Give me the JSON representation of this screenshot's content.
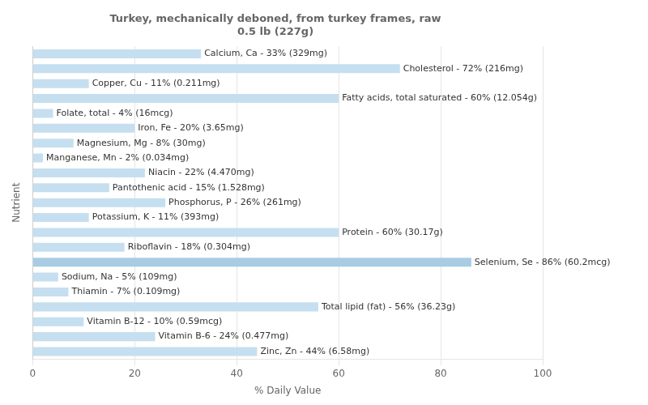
{
  "chart_data": {
    "type": "bar",
    "orientation": "horizontal",
    "title": "Turkey, mechanically deboned, from turkey frames, raw\n0.5 lb (227g)",
    "x_label": "% Daily Value",
    "y_label": "Nutrient",
    "categories": [
      "Calcium, Ca - 33% (329mg)",
      "Cholesterol - 72% (216mg)",
      "Copper, Cu - 11% (0.211mg)",
      "Fatty acids, total saturated - 60% (12.054g)",
      "Folate, total - 4% (16mcg)",
      "Iron, Fe - 20% (3.65mg)",
      "Magnesium, Mg - 8% (30mg)",
      "Manganese, Mn - 2% (0.034mg)",
      "Niacin - 22% (4.470mg)",
      "Pantothenic acid - 15% (1.528mg)",
      "Phosphorus, P - 26% (261mg)",
      "Potassium, K - 11% (393mg)",
      "Protein - 60% (30.17g)",
      "Riboflavin - 18% (0.304mg)",
      "Selenium, Se - 86% (60.2mcg)",
      "Sodium, Na - 5% (109mg)",
      "Thiamin - 7% (0.109mg)",
      "Total lipid (fat) - 56% (36.23g)",
      "Vitamin B-12 - 10% (0.59mcg)",
      "Vitamin B-6 - 24% (0.477mg)",
      "Zinc, Zn - 44% (6.58mg)"
    ],
    "values": [
      33,
      72,
      11,
      60,
      4,
      20,
      8,
      2,
      22,
      15,
      26,
      11,
      60,
      18,
      86,
      5,
      7,
      56,
      10,
      24,
      44
    ],
    "colors": [
      "#c5dff0",
      "#c5dff0",
      "#c5dff0",
      "#c5dff0",
      "#c5dff0",
      "#c5dff0",
      "#c5dff0",
      "#c5dff0",
      "#c5dff0",
      "#c5dff0",
      "#c5dff0",
      "#c5dff0",
      "#c5dff0",
      "#c5dff0",
      "#a8cce4",
      "#c5dff0",
      "#c5dff0",
      "#c5dff0",
      "#c5dff0",
      "#c5dff0",
      "#c5dff0"
    ],
    "xlim": [
      0,
      100
    ],
    "xticks": [
      0,
      20,
      40,
      60,
      80,
      100
    ],
    "grid": true,
    "tick_labels": "x"
  }
}
